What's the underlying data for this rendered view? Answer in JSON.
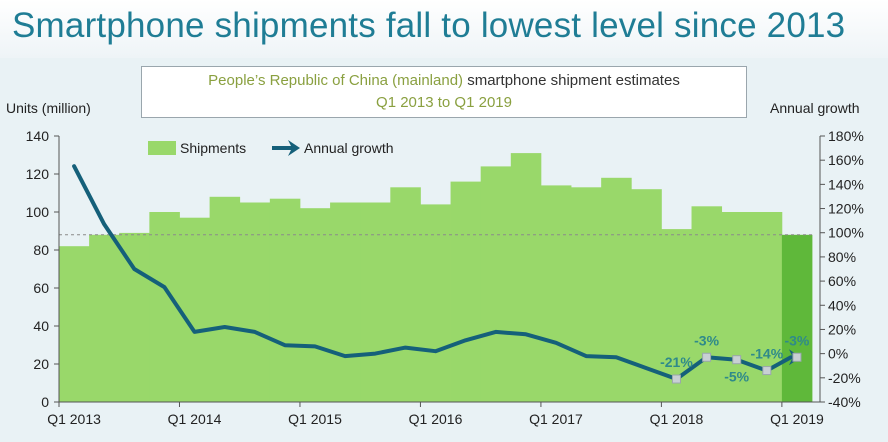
{
  "headline": "Smartphone shipments fall to lowest level since 2013",
  "subtitle": {
    "part1": "People’s Republic of China (mainland) ",
    "part2": "smartphone shipment estimates",
    "line2": "Q1 2013 to Q1 2019"
  },
  "colors": {
    "headline": "#1f7d95",
    "bar": "#99d86a",
    "bar_highlight": "#5fb83a",
    "line": "#15607a",
    "reference_line": "#8a8a8a",
    "background": "#e9f2f5",
    "label_text": "#2f8a8a"
  },
  "chart_data": {
    "type": "bar",
    "x": [
      "Q1 2013",
      "Q2 2013",
      "Q3 2013",
      "Q4 2013",
      "Q1 2014",
      "Q2 2014",
      "Q3 2014",
      "Q4 2014",
      "Q1 2015",
      "Q2 2015",
      "Q3 2015",
      "Q4 2015",
      "Q1 2016",
      "Q2 2016",
      "Q3 2016",
      "Q4 2016",
      "Q1 2017",
      "Q2 2017",
      "Q3 2017",
      "Q4 2017",
      "Q1 2018",
      "Q2 2018",
      "Q3 2018",
      "Q4 2018",
      "Q1 2019"
    ],
    "xtick_labels": [
      "Q1 2013",
      "Q1 2014",
      "Q1 2015",
      "Q1 2016",
      "Q1 2017",
      "Q1 2018",
      "Q1 2019"
    ],
    "ylabel": "Units (million)",
    "y2label": "Annual growth",
    "ylim": [
      0,
      140
    ],
    "yticks": [
      0,
      20,
      40,
      60,
      80,
      100,
      120,
      140
    ],
    "y2lim": [
      -40,
      180
    ],
    "y2ticks": [
      "-40%",
      "-20%",
      "0%",
      "20%",
      "40%",
      "60%",
      "80%",
      "100%",
      "120%",
      "140%",
      "160%",
      "180%"
    ],
    "legend_position": "top-left",
    "grid": false,
    "highlight_last_bar": true,
    "reference_line_value": 88,
    "series": [
      {
        "name": "Shipments",
        "axis": "left",
        "type": "bar",
        "values": [
          82,
          88,
          89,
          100,
          97,
          108,
          105,
          107,
          102,
          105,
          105,
          113,
          104,
          116,
          124,
          131,
          114,
          113,
          118,
          112,
          91,
          103,
          100,
          100,
          88
        ]
      },
      {
        "name": "Annual growth",
        "axis": "right",
        "type": "line",
        "values": [
          155,
          107,
          70,
          55,
          18,
          22,
          18,
          7,
          6,
          -2,
          0,
          5,
          2,
          11,
          18,
          16,
          9,
          -2,
          -3,
          -12,
          -21,
          -3,
          -5,
          -14,
          -3
        ]
      }
    ],
    "annotations": [
      {
        "index": 20,
        "text": "-21%",
        "position": "above"
      },
      {
        "index": 21,
        "text": "-3%",
        "position": "above"
      },
      {
        "index": 22,
        "text": "-5%",
        "position": "below"
      },
      {
        "index": 23,
        "text": "-14%",
        "position": "above"
      },
      {
        "index": 24,
        "text": "-3%",
        "position": "above"
      }
    ]
  }
}
